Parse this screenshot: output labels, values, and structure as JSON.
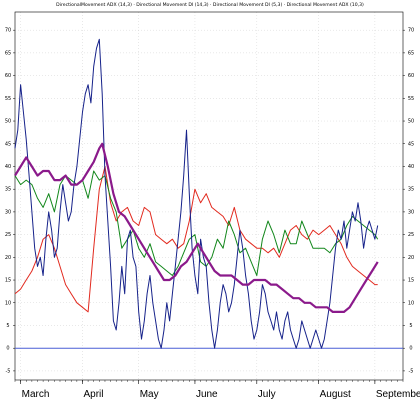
{
  "chart_data": {
    "type": "line",
    "title": "DirectionalMovement ADX (14,3) · Directional Movement DI (14,3) · Directional Movement DI (5,3) · Directional Movement ADX (10,3)",
    "xlabel": "",
    "ylabel": "",
    "x_tick_labels": [
      "March",
      "April",
      "May",
      "June",
      "July",
      "August",
      "September"
    ],
    "x_tick_positions": [
      2,
      24,
      44,
      64,
      86,
      108,
      128
    ],
    "y_tick_labels": [
      "-5",
      "0",
      "5",
      "10",
      "15",
      "20",
      "25",
      "30",
      "35",
      "40",
      "45",
      "50",
      "55",
      "60",
      "65",
      "70"
    ],
    "ylim": [
      -7,
      74
    ],
    "xlim": [
      0,
      138
    ],
    "grid": true,
    "legend": "none",
    "reference_line": {
      "value": 0,
      "color": "#4a5fd6"
    },
    "series": [
      {
        "id": "purple",
        "color": "#8b1a8b",
        "width": 2.2,
        "points": [
          [
            0,
            38
          ],
          [
            2,
            40
          ],
          [
            4,
            42
          ],
          [
            6,
            40
          ],
          [
            8,
            38
          ],
          [
            10,
            39
          ],
          [
            12,
            39
          ],
          [
            14,
            37
          ],
          [
            16,
            37
          ],
          [
            18,
            38
          ],
          [
            20,
            36
          ],
          [
            22,
            36
          ],
          [
            24,
            37
          ],
          [
            26,
            39
          ],
          [
            28,
            41
          ],
          [
            30,
            44
          ],
          [
            31,
            45
          ],
          [
            33,
            40
          ],
          [
            35,
            34
          ],
          [
            37,
            30
          ],
          [
            39,
            29
          ],
          [
            41,
            27
          ],
          [
            43,
            25
          ],
          [
            45,
            23
          ],
          [
            47,
            21
          ],
          [
            49,
            19
          ],
          [
            51,
            17
          ],
          [
            53,
            15
          ],
          [
            55,
            15
          ],
          [
            57,
            16
          ],
          [
            59,
            18
          ],
          [
            61,
            19
          ],
          [
            63,
            21
          ],
          [
            65,
            23
          ],
          [
            67,
            21
          ],
          [
            69,
            19
          ],
          [
            71,
            17
          ],
          [
            73,
            16
          ],
          [
            75,
            16
          ],
          [
            77,
            16
          ],
          [
            79,
            15
          ],
          [
            81,
            14
          ],
          [
            83,
            14
          ],
          [
            85,
            15
          ],
          [
            87,
            15
          ],
          [
            89,
            15
          ],
          [
            91,
            14
          ],
          [
            93,
            14
          ],
          [
            95,
            13
          ],
          [
            97,
            12
          ],
          [
            99,
            11
          ],
          [
            101,
            11
          ],
          [
            103,
            10
          ],
          [
            105,
            10
          ],
          [
            107,
            9
          ],
          [
            109,
            9
          ],
          [
            111,
            9
          ],
          [
            113,
            8
          ],
          [
            115,
            8
          ],
          [
            117,
            8
          ],
          [
            119,
            9
          ],
          [
            121,
            11
          ],
          [
            123,
            13
          ],
          [
            125,
            15
          ],
          [
            127,
            17
          ],
          [
            129,
            19
          ]
        ]
      },
      {
        "id": "green",
        "color": "#12871b",
        "width": 1,
        "points": [
          [
            0,
            38
          ],
          [
            2,
            36
          ],
          [
            4,
            37
          ],
          [
            6,
            36
          ],
          [
            8,
            33
          ],
          [
            10,
            31
          ],
          [
            12,
            34
          ],
          [
            14,
            30
          ],
          [
            16,
            36
          ],
          [
            18,
            38
          ],
          [
            20,
            37
          ],
          [
            22,
            36
          ],
          [
            24,
            37
          ],
          [
            26,
            33
          ],
          [
            28,
            39
          ],
          [
            30,
            37
          ],
          [
            32,
            38
          ],
          [
            34,
            33
          ],
          [
            36,
            30
          ],
          [
            38,
            22
          ],
          [
            40,
            24
          ],
          [
            42,
            26
          ],
          [
            44,
            22
          ],
          [
            46,
            20
          ],
          [
            48,
            23
          ],
          [
            50,
            19
          ],
          [
            52,
            18
          ],
          [
            54,
            17
          ],
          [
            56,
            16
          ],
          [
            58,
            18
          ],
          [
            60,
            21
          ],
          [
            62,
            24
          ],
          [
            64,
            25
          ],
          [
            66,
            19
          ],
          [
            68,
            18
          ],
          [
            70,
            20
          ],
          [
            72,
            24
          ],
          [
            74,
            22
          ],
          [
            76,
            28
          ],
          [
            78,
            25
          ],
          [
            80,
            21
          ],
          [
            82,
            22
          ],
          [
            84,
            19
          ],
          [
            86,
            16
          ],
          [
            88,
            24
          ],
          [
            90,
            28
          ],
          [
            92,
            25
          ],
          [
            94,
            21
          ],
          [
            96,
            26
          ],
          [
            98,
            23
          ],
          [
            100,
            23
          ],
          [
            102,
            28
          ],
          [
            104,
            25
          ],
          [
            106,
            22
          ],
          [
            108,
            22
          ],
          [
            110,
            22
          ],
          [
            112,
            21
          ],
          [
            114,
            23
          ],
          [
            116,
            24
          ],
          [
            118,
            27
          ],
          [
            120,
            29
          ],
          [
            122,
            28
          ],
          [
            124,
            27
          ],
          [
            126,
            26
          ],
          [
            128,
            25
          ],
          [
            129,
            24
          ]
        ]
      },
      {
        "id": "red",
        "color": "#e22a1f",
        "width": 1,
        "points": [
          [
            0,
            12
          ],
          [
            2,
            13
          ],
          [
            4,
            15
          ],
          [
            6,
            17
          ],
          [
            8,
            20
          ],
          [
            10,
            24
          ],
          [
            12,
            25
          ],
          [
            14,
            22
          ],
          [
            16,
            18
          ],
          [
            18,
            14
          ],
          [
            20,
            12
          ],
          [
            22,
            10
          ],
          [
            24,
            9
          ],
          [
            26,
            8
          ],
          [
            28,
            22
          ],
          [
            30,
            35
          ],
          [
            32,
            40
          ],
          [
            34,
            32
          ],
          [
            36,
            28
          ],
          [
            38,
            30
          ],
          [
            40,
            31
          ],
          [
            42,
            28
          ],
          [
            44,
            27
          ],
          [
            46,
            31
          ],
          [
            48,
            30
          ],
          [
            50,
            25
          ],
          [
            52,
            24
          ],
          [
            54,
            23
          ],
          [
            56,
            24
          ],
          [
            58,
            22
          ],
          [
            60,
            23
          ],
          [
            62,
            28
          ],
          [
            64,
            35
          ],
          [
            66,
            32
          ],
          [
            68,
            34
          ],
          [
            70,
            31
          ],
          [
            72,
            30
          ],
          [
            74,
            29
          ],
          [
            76,
            27
          ],
          [
            78,
            31
          ],
          [
            80,
            26
          ],
          [
            82,
            24
          ],
          [
            84,
            23
          ],
          [
            86,
            22
          ],
          [
            88,
            22
          ],
          [
            90,
            21
          ],
          [
            92,
            22
          ],
          [
            94,
            20
          ],
          [
            96,
            23
          ],
          [
            98,
            26
          ],
          [
            100,
            27
          ],
          [
            102,
            25
          ],
          [
            104,
            24
          ],
          [
            106,
            26
          ],
          [
            108,
            25
          ],
          [
            110,
            26
          ],
          [
            112,
            27
          ],
          [
            114,
            25
          ],
          [
            116,
            23
          ],
          [
            118,
            20
          ],
          [
            120,
            18
          ],
          [
            122,
            17
          ],
          [
            124,
            16
          ],
          [
            126,
            15
          ],
          [
            128,
            14
          ],
          [
            129,
            14
          ]
        ]
      },
      {
        "id": "blue",
        "color": "#16228a",
        "width": 1,
        "points": [
          [
            0,
            44
          ],
          [
            1,
            48
          ],
          [
            2,
            58
          ],
          [
            3,
            52
          ],
          [
            4,
            46
          ],
          [
            5,
            38
          ],
          [
            6,
            30
          ],
          [
            7,
            22
          ],
          [
            8,
            18
          ],
          [
            9,
            20
          ],
          [
            10,
            16
          ],
          [
            11,
            24
          ],
          [
            12,
            30
          ],
          [
            13,
            26
          ],
          [
            14,
            20
          ],
          [
            15,
            22
          ],
          [
            16,
            30
          ],
          [
            17,
            36
          ],
          [
            18,
            32
          ],
          [
            19,
            28
          ],
          [
            20,
            30
          ],
          [
            21,
            36
          ],
          [
            22,
            40
          ],
          [
            23,
            46
          ],
          [
            24,
            52
          ],
          [
            25,
            56
          ],
          [
            26,
            58
          ],
          [
            27,
            54
          ],
          [
            28,
            62
          ],
          [
            29,
            66
          ],
          [
            30,
            68
          ],
          [
            31,
            56
          ],
          [
            32,
            38
          ],
          [
            33,
            28
          ],
          [
            34,
            18
          ],
          [
            35,
            6
          ],
          [
            36,
            4
          ],
          [
            37,
            10
          ],
          [
            38,
            18
          ],
          [
            39,
            12
          ],
          [
            40,
            24
          ],
          [
            41,
            26
          ],
          [
            42,
            20
          ],
          [
            43,
            18
          ],
          [
            44,
            8
          ],
          [
            45,
            2
          ],
          [
            46,
            6
          ],
          [
            47,
            12
          ],
          [
            48,
            16
          ],
          [
            49,
            10
          ],
          [
            50,
            6
          ],
          [
            51,
            2
          ],
          [
            52,
            0
          ],
          [
            53,
            4
          ],
          [
            54,
            10
          ],
          [
            55,
            6
          ],
          [
            56,
            12
          ],
          [
            57,
            18
          ],
          [
            58,
            24
          ],
          [
            59,
            30
          ],
          [
            60,
            38
          ],
          [
            61,
            48
          ],
          [
            62,
            34
          ],
          [
            63,
            22
          ],
          [
            64,
            16
          ],
          [
            65,
            12
          ],
          [
            66,
            24
          ],
          [
            67,
            20
          ],
          [
            68,
            18
          ],
          [
            69,
            10
          ],
          [
            70,
            4
          ],
          [
            71,
            0
          ],
          [
            72,
            4
          ],
          [
            73,
            10
          ],
          [
            74,
            14
          ],
          [
            75,
            12
          ],
          [
            76,
            8
          ],
          [
            77,
            10
          ],
          [
            78,
            14
          ],
          [
            79,
            20
          ],
          [
            80,
            26
          ],
          [
            81,
            22
          ],
          [
            82,
            16
          ],
          [
            83,
            12
          ],
          [
            84,
            6
          ],
          [
            85,
            2
          ],
          [
            86,
            4
          ],
          [
            87,
            8
          ],
          [
            88,
            14
          ],
          [
            89,
            12
          ],
          [
            90,
            8
          ],
          [
            91,
            6
          ],
          [
            92,
            4
          ],
          [
            93,
            8
          ],
          [
            94,
            4
          ],
          [
            95,
            2
          ],
          [
            96,
            6
          ],
          [
            97,
            8
          ],
          [
            98,
            4
          ],
          [
            99,
            2
          ],
          [
            100,
            0
          ],
          [
            101,
            2
          ],
          [
            102,
            6
          ],
          [
            103,
            4
          ],
          [
            104,
            2
          ],
          [
            105,
            0
          ],
          [
            106,
            2
          ],
          [
            107,
            4
          ],
          [
            108,
            2
          ],
          [
            109,
            0
          ],
          [
            110,
            2
          ],
          [
            111,
            6
          ],
          [
            112,
            10
          ],
          [
            113,
            16
          ],
          [
            114,
            22
          ],
          [
            115,
            26
          ],
          [
            116,
            24
          ],
          [
            117,
            28
          ],
          [
            118,
            22
          ],
          [
            119,
            26
          ],
          [
            120,
            30
          ],
          [
            121,
            28
          ],
          [
            122,
            32
          ],
          [
            123,
            28
          ],
          [
            124,
            22
          ],
          [
            125,
            26
          ],
          [
            126,
            28
          ],
          [
            127,
            26
          ],
          [
            128,
            24
          ],
          [
            129,
            27
          ]
        ]
      }
    ]
  }
}
